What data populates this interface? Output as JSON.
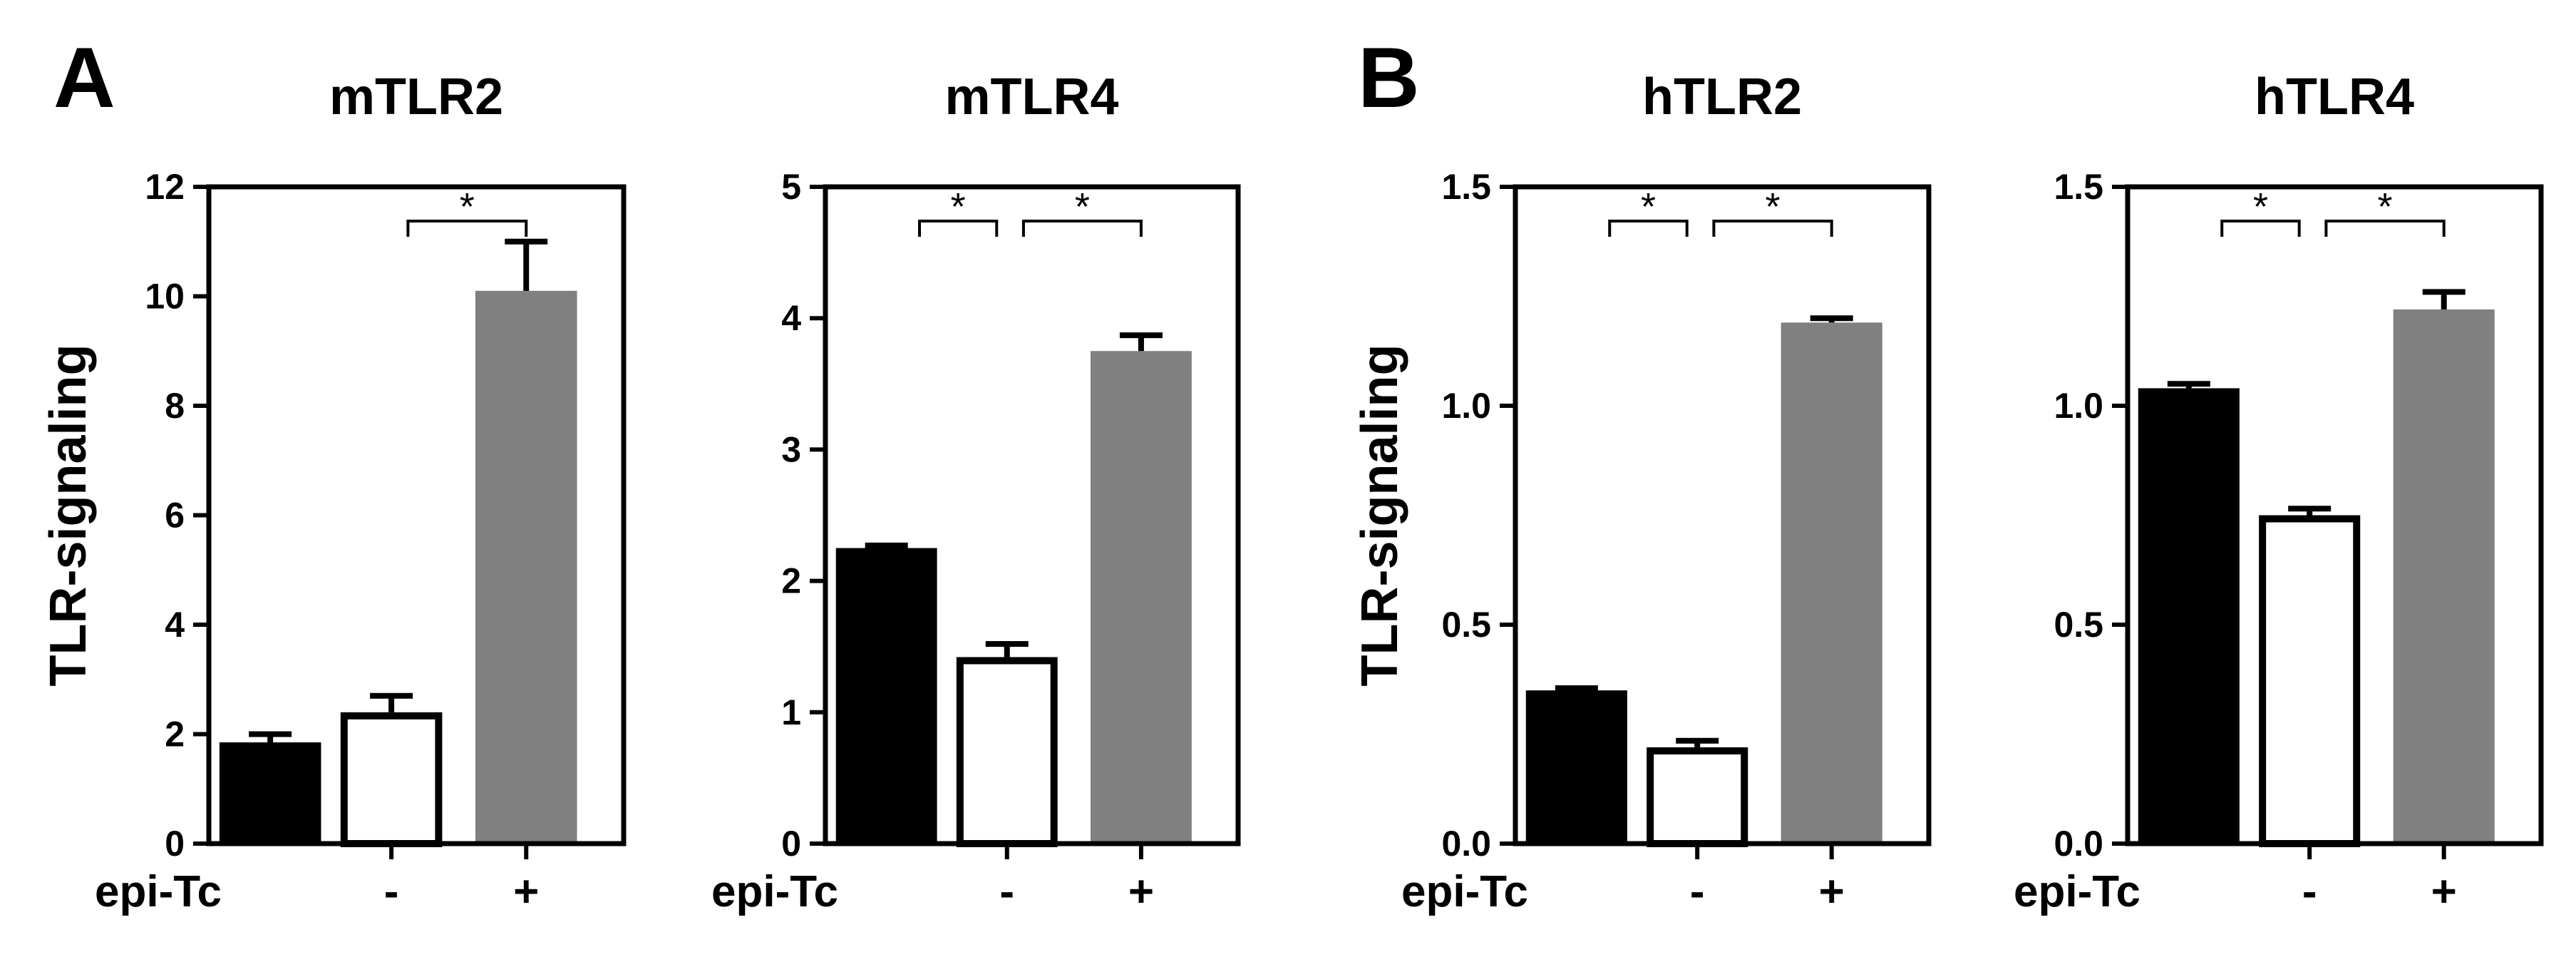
{
  "panel_letters": [
    "A",
    "B"
  ],
  "colors": {
    "black_bar": "#000000",
    "open_bar": "#ffffff",
    "gray_bar": "#808080",
    "axis": "#000000"
  },
  "chart_data": [
    {
      "type": "bar",
      "title": "mTLR2",
      "ylabel": "TLR-signaling",
      "ylim": [
        0,
        12
      ],
      "yticks": [
        0,
        2,
        4,
        6,
        8,
        10,
        12
      ],
      "ytick_labels": [
        "0",
        "2",
        "4",
        "6",
        "8",
        "10",
        "12"
      ],
      "category_labels": [
        "epi-Tc",
        "-",
        "+"
      ],
      "values": [
        1.85,
        2.4,
        10.1
      ],
      "errors": [
        0.15,
        0.3,
        0.9
      ],
      "fills": [
        "#000000",
        "#ffffff",
        "#808080"
      ],
      "significance": [
        {
          "from": 1,
          "to": 2,
          "label": "*"
        }
      ]
    },
    {
      "type": "bar",
      "title": "mTLR4",
      "ylabel": "",
      "ylim": [
        0,
        5
      ],
      "yticks": [
        0,
        1,
        2,
        3,
        4,
        5
      ],
      "ytick_labels": [
        "0",
        "1",
        "2",
        "3",
        "4",
        "5"
      ],
      "category_labels": [
        "epi-Tc",
        "-",
        "+"
      ],
      "values": [
        2.25,
        1.42,
        3.75
      ],
      "errors": [
        0.02,
        0.1,
        0.12
      ],
      "fills": [
        "#000000",
        "#ffffff",
        "#808080"
      ],
      "significance": [
        {
          "from": 0,
          "to": 1,
          "label": "*"
        },
        {
          "from": 1,
          "to": 2,
          "label": "*"
        }
      ]
    },
    {
      "type": "bar",
      "title": "hTLR2",
      "ylabel": "TLR-signaling",
      "ylim": [
        0,
        1.5
      ],
      "yticks": [
        0,
        0.5,
        1.0,
        1.5
      ],
      "ytick_labels": [
        "0.0",
        "0.5",
        "1.0",
        "1.5"
      ],
      "category_labels": [
        "epi-Tc",
        "-",
        "+"
      ],
      "values": [
        0.35,
        0.22,
        1.19
      ],
      "errors": [
        0.005,
        0.015,
        0.01
      ],
      "fills": [
        "#000000",
        "#ffffff",
        "#808080"
      ],
      "significance": [
        {
          "from": 0,
          "to": 1,
          "label": "*"
        },
        {
          "from": 1,
          "to": 2,
          "label": "*"
        }
      ]
    },
    {
      "type": "bar",
      "title": "hTLR4",
      "ylabel": "",
      "ylim": [
        0,
        1.5
      ],
      "yticks": [
        0,
        0.5,
        1.0,
        1.5
      ],
      "ytick_labels": [
        "0.0",
        "0.5",
        "1.0",
        "1.5"
      ],
      "category_labels": [
        "epi-Tc",
        "-",
        "+"
      ],
      "values": [
        1.04,
        0.75,
        1.22
      ],
      "errors": [
        0.01,
        0.015,
        0.04
      ],
      "fills": [
        "#000000",
        "#ffffff",
        "#808080"
      ],
      "significance": [
        {
          "from": 0,
          "to": 1,
          "label": "*"
        },
        {
          "from": 1,
          "to": 2,
          "label": "*"
        }
      ]
    }
  ]
}
